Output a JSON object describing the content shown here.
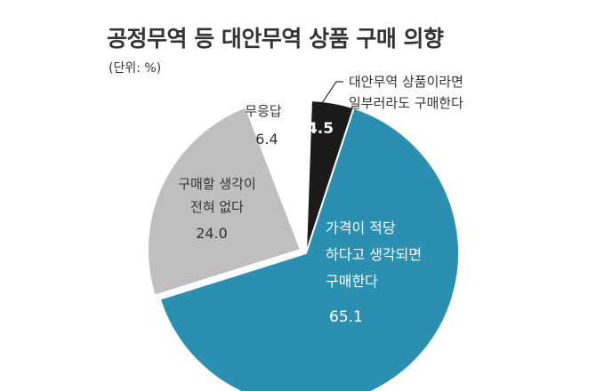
{
  "chart_data": {
    "type": "pie",
    "title": "공정무역 등 대안무역 상품 구매 의향",
    "unit": "(단위: %)",
    "slices": [
      {
        "label_lines": [
          "대안무역 상품이라면",
          "일부러라도 구매한다"
        ],
        "value": 4.5,
        "value_text": "4.5",
        "color": "#1a1a1a"
      },
      {
        "label_lines": [
          "가격이 적당",
          "하다고 생각되면",
          "구매한다"
        ],
        "value": 65.1,
        "value_text": "65.1",
        "color": "#2a8fb0"
      },
      {
        "label_lines": [
          "구매할 생각이",
          "전혀 없다"
        ],
        "value": 24.0,
        "value_text": "24.0",
        "color": "#bfbfbf"
      },
      {
        "label_lines": [
          "무응답"
        ],
        "value": 6.4,
        "value_text": "6.4",
        "color": "#ffffff"
      }
    ]
  }
}
